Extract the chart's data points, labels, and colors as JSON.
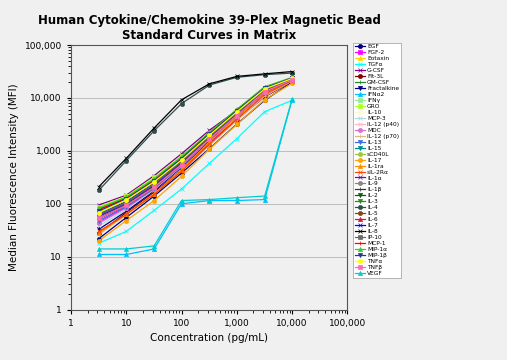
{
  "title": "Human Cytokine/Chemokine 39-Plex Magnetic Bead\nStandard Curves in Matrix",
  "xlabel": "Concentration (pg/mL)",
  "ylabel": "Median Fluorescence Intensity (MFI)",
  "xlim": [
    1,
    100000
  ],
  "ylim": [
    1,
    100000
  ],
  "x_conc": [
    3.2,
    10,
    32,
    100,
    320,
    1000,
    3200,
    10000
  ],
  "series": [
    {
      "name": "EGF",
      "color": "#000080",
      "marker": "o",
      "ls": "-",
      "y": [
        22,
        55,
        140,
        380,
        1100,
        3200,
        9000,
        20000
      ]
    },
    {
      "name": "FGF-2",
      "color": "#FF00FF",
      "marker": "s",
      "ls": "-",
      "y": [
        45,
        85,
        190,
        490,
        1450,
        3900,
        11000,
        21000
      ]
    },
    {
      "name": "Eotaxin",
      "color": "#FFD700",
      "marker": "^",
      "ls": "-",
      "y": [
        75,
        125,
        270,
        680,
        1950,
        5300,
        13500,
        22500
      ]
    },
    {
      "name": "TGFα",
      "color": "#00FFFF",
      "marker": "x",
      "ls": "-",
      "y": [
        18,
        30,
        75,
        190,
        580,
        1700,
        5500,
        9000
      ]
    },
    {
      "name": "G-CSF",
      "color": "#800080",
      "marker": "x",
      "ls": "-",
      "y": [
        95,
        145,
        340,
        880,
        2450,
        5800,
        15500,
        23500
      ]
    },
    {
      "name": "Flt-3L",
      "color": "#8B0000",
      "marker": "o",
      "ls": "-",
      "y": [
        28,
        68,
        165,
        440,
        1350,
        3900,
        10500,
        20500
      ]
    },
    {
      "name": "GM-CSF",
      "color": "#228B22",
      "marker": "+",
      "ls": "-",
      "y": [
        62,
        108,
        245,
        640,
        1880,
        5100,
        13800,
        22000
      ]
    },
    {
      "name": "Fractalkine",
      "color": "#000080",
      "marker": "v",
      "ls": "-",
      "y": [
        33,
        72,
        175,
        490,
        1580,
        4400,
        12700,
        21800
      ]
    },
    {
      "name": "IFNα2",
      "color": "#00BFFF",
      "marker": "^",
      "ls": "-",
      "y": [
        11,
        11,
        14,
        100,
        115,
        115,
        120,
        9200
      ]
    },
    {
      "name": "IFNγ",
      "color": "#90EE90",
      "marker": "s",
      "ls": "-",
      "y": [
        52,
        97,
        215,
        590,
        1780,
        4900,
        13800,
        22800
      ]
    },
    {
      "name": "GRO",
      "color": "#ADFF2F",
      "marker": "s",
      "ls": "-",
      "y": [
        88,
        138,
        315,
        790,
        2180,
        5900,
        14800,
        23800
      ]
    },
    {
      "name": "IL-10",
      "color": "#FFFACD",
      "marker": "o",
      "ls": "-",
      "y": [
        68,
        118,
        255,
        670,
        1930,
        5200,
        14200,
        22800
      ]
    },
    {
      "name": "MCP-3",
      "color": "#ADD8E6",
      "marker": "x",
      "ls": "-",
      "y": [
        38,
        78,
        185,
        510,
        1680,
        4650,
        12800,
        21800
      ]
    },
    {
      "name": "IL-12 (p40)",
      "color": "#FFB6C1",
      "marker": "x",
      "ls": "-",
      "y": [
        52,
        92,
        205,
        550,
        1680,
        4550,
        12800,
        21800
      ]
    },
    {
      "name": "MDC",
      "color": "#DA70D6",
      "marker": "o",
      "ls": "-",
      "y": [
        43,
        83,
        190,
        520,
        1630,
        4550,
        12800,
        21800
      ]
    },
    {
      "name": "IL-12 (p70)",
      "color": "#DEB887",
      "marker": "+",
      "ls": "-",
      "y": [
        26,
        63,
        155,
        420,
        1280,
        3750,
        10800,
        20800
      ]
    },
    {
      "name": "IL-13",
      "color": "#4169E1",
      "marker": "v",
      "ls": "-",
      "y": [
        48,
        88,
        195,
        540,
        1680,
        4650,
        13200,
        21900
      ]
    },
    {
      "name": "IL-15",
      "color": "#008B8B",
      "marker": "v",
      "ls": "-",
      "y": [
        58,
        103,
        225,
        610,
        1830,
        5050,
        13800,
        22800
      ]
    },
    {
      "name": "sCD40L",
      "color": "#9ACD32",
      "marker": "o",
      "ls": "-",
      "y": [
        82,
        132,
        295,
        770,
        2180,
        5900,
        15200,
        23800
      ]
    },
    {
      "name": "IL-17",
      "color": "#FFA500",
      "marker": "o",
      "ls": "-",
      "y": [
        20,
        48,
        115,
        330,
        1080,
        3150,
        9300,
        18800
      ]
    },
    {
      "name": "IL-1ra",
      "color": "#FF8C00",
      "marker": "^",
      "ls": "-",
      "y": [
        28,
        63,
        155,
        440,
        1480,
        4400,
        12800,
        20800
      ]
    },
    {
      "name": "sIL-2Rα",
      "color": "#FF4500",
      "marker": "x",
      "ls": "-",
      "y": [
        30,
        63,
        150,
        410,
        1330,
        3950,
        11800,
        21300
      ]
    },
    {
      "name": "IL-1α",
      "color": "#6A0DAD",
      "marker": "x",
      "ls": "-",
      "y": [
        58,
        98,
        220,
        590,
        1780,
        4950,
        13800,
        22800
      ]
    },
    {
      "name": "IL-9",
      "color": "#888888",
      "marker": "o",
      "ls": "-",
      "y": [
        53,
        93,
        205,
        550,
        1680,
        4650,
        13200,
        21800
      ]
    },
    {
      "name": "IL-1β",
      "color": "#333333",
      "marker": "+",
      "ls": "-",
      "y": [
        53,
        93,
        210,
        560,
        1700,
        4700,
        13200,
        21800
      ]
    },
    {
      "name": "IL-2",
      "color": "#006400",
      "marker": "v",
      "ls": "-",
      "y": [
        63,
        108,
        240,
        630,
        1880,
        5150,
        14200,
        22800
      ]
    },
    {
      "name": "IL-3",
      "color": "#2E8B22",
      "marker": "v",
      "ls": "-",
      "y": [
        68,
        118,
        260,
        670,
        1980,
        5450,
        14800,
        23800
      ]
    },
    {
      "name": "IL-4",
      "color": "#2F4F4F",
      "marker": "o",
      "ls": "-",
      "y": [
        180,
        650,
        2400,
        7800,
        17500,
        24500,
        27500,
        29500
      ]
    },
    {
      "name": "IL-5",
      "color": "#8B4513",
      "marker": "o",
      "ls": "-",
      "y": [
        53,
        93,
        205,
        560,
        1710,
        4750,
        13400,
        21800
      ]
    },
    {
      "name": "IL-6",
      "color": "#DC143C",
      "marker": "^",
      "ls": "-",
      "y": [
        78,
        128,
        285,
        740,
        2180,
        5900,
        15800,
        23800
      ]
    },
    {
      "name": "IL-7",
      "color": "#0000FF",
      "marker": "x",
      "ls": "-",
      "y": [
        63,
        108,
        240,
        630,
        1880,
        5150,
        14200,
        22800
      ]
    },
    {
      "name": "IL-8",
      "color": "#000000",
      "marker": "x",
      "ls": "-",
      "y": [
        210,
        720,
        2700,
        9200,
        18500,
        25500,
        28500,
        31500
      ]
    },
    {
      "name": "IP-10",
      "color": "#696969",
      "marker": "s",
      "ls": "-",
      "y": [
        63,
        106,
        238,
        625,
        1870,
        5130,
        14200,
        22800
      ]
    },
    {
      "name": "MCP-1",
      "color": "#FF0000",
      "marker": "+",
      "ls": "-",
      "y": [
        78,
        128,
        285,
        740,
        2180,
        5900,
        15800,
        23800
      ]
    },
    {
      "name": "MIP-1α",
      "color": "#32CD32",
      "marker": "^",
      "ls": "-",
      "y": [
        83,
        133,
        295,
        770,
        2230,
        6050,
        16300,
        24300
      ]
    },
    {
      "name": "MIP-1β",
      "color": "#1E3A8A",
      "marker": "v",
      "ls": "-",
      "y": [
        73,
        123,
        270,
        710,
        2080,
        5750,
        15300,
        23800
      ]
    },
    {
      "name": "TNFα",
      "color": "#FFFF00",
      "marker": "o",
      "ls": "-",
      "y": [
        68,
        118,
        260,
        670,
        1980,
        5450,
        14800,
        23300
      ]
    },
    {
      "name": "TNFβ",
      "color": "#FF69B4",
      "marker": "s",
      "ls": "-",
      "y": [
        53,
        93,
        205,
        550,
        1680,
        4650,
        13200,
        21800
      ]
    },
    {
      "name": "VEGF",
      "color": "#00CED1",
      "marker": "^",
      "ls": "-",
      "y": [
        14,
        14,
        16,
        115,
        120,
        130,
        140,
        9500
      ]
    }
  ]
}
